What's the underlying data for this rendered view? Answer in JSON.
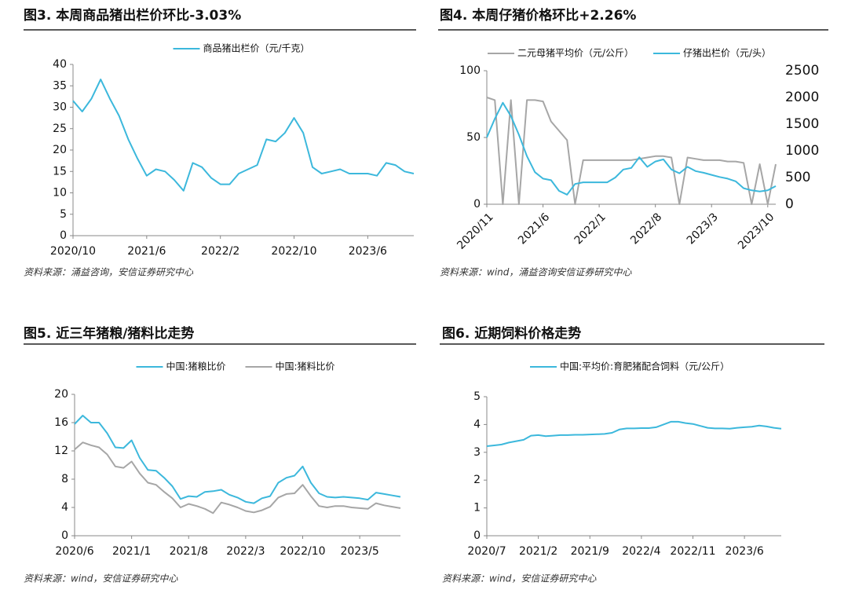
{
  "chart_data": [
    {
      "type": "line",
      "title": "图3. 本周商品猪出栏价环比-3.03%",
      "source": "资料来源：涌益咨询，安信证券研究中心",
      "categories": [
        "2020/10",
        null,
        null,
        null,
        null,
        null,
        null,
        null,
        "2021/6",
        null,
        null,
        null,
        null,
        null,
        null,
        null,
        "2022/2",
        null,
        null,
        null,
        null,
        null,
        null,
        null,
        "2022/10",
        null,
        null,
        null,
        null,
        null,
        null,
        null,
        "2023/6",
        null,
        null,
        null,
        null,
        null
      ],
      "series": [
        {
          "name": "商品猪出栏价（元/千克）",
          "color": "#3cb8dc",
          "values": [
            31.5,
            29,
            32,
            36.5,
            32,
            28,
            22.5,
            18,
            14,
            15.5,
            15,
            13,
            10.5,
            17,
            16,
            13.5,
            12,
            12,
            14.5,
            15.5,
            16.5,
            22.5,
            22,
            24,
            27.5,
            24,
            16,
            14.5,
            15,
            15.5,
            14.5,
            14.5,
            14.5,
            14,
            17,
            16.5,
            15,
            14.5
          ]
        }
      ],
      "ylim": [
        0,
        40
      ],
      "yticks": [
        0,
        5,
        10,
        15,
        20,
        25,
        30,
        35,
        40
      ]
    },
    {
      "type": "line",
      "title": "图4. 本周仔猪价格环比+2.26%",
      "source": "资料来源：wind，涌益咨询安信证券研究中心",
      "categories": [
        "2020/11",
        null,
        null,
        null,
        null,
        null,
        null,
        "2021/6",
        null,
        null,
        null,
        null,
        null,
        null,
        "2022/1",
        null,
        null,
        null,
        null,
        null,
        null,
        "2022/8",
        null,
        null,
        null,
        null,
        null,
        null,
        "2023/3",
        null,
        null,
        null,
        null,
        null,
        null,
        "2023/10",
        null
      ],
      "series": [
        {
          "name": "二元母猪平均价（元/公斤）",
          "color": "#a6a6a6",
          "values": [
            80,
            78,
            0,
            78,
            0,
            78,
            78,
            77,
            62,
            55,
            48,
            0,
            33,
            33,
            33,
            33,
            33,
            33,
            33,
            34,
            35,
            36,
            36,
            35,
            0,
            35,
            34,
            33,
            33,
            33,
            32,
            32,
            31,
            0,
            30,
            0,
            30
          ]
        },
        {
          "name": "仔猪出栏价（元/头）",
          "color": "#3cb8dc",
          "axis": "y2",
          "values": [
            1250,
            1600,
            1900,
            1650,
            1300,
            900,
            600,
            480,
            450,
            250,
            180,
            380,
            410,
            410,
            410,
            410,
            500,
            650,
            680,
            880,
            700,
            800,
            840,
            650,
            580,
            700,
            620,
            590,
            550,
            510,
            480,
            430,
            300,
            260,
            240,
            260,
            340
          ]
        }
      ],
      "ylim": [
        0,
        100
      ],
      "yticks": [
        0,
        50,
        100
      ],
      "y2lim": [
        0,
        2500
      ],
      "y2ticks": [
        0,
        500,
        1000,
        1500,
        2000,
        2500
      ]
    },
    {
      "type": "line",
      "title": "图5. 近三年猪粮/猪料比走势",
      "source": "资料来源：wind，安信证券研究中心",
      "categories": [
        "2020/6",
        null,
        null,
        null,
        null,
        null,
        null,
        "2021/1",
        null,
        null,
        null,
        null,
        null,
        null,
        "2021/8",
        null,
        null,
        null,
        null,
        null,
        null,
        "2022/3",
        null,
        null,
        null,
        null,
        null,
        null,
        "2022/10",
        null,
        null,
        null,
        null,
        null,
        null,
        "2023/5",
        null,
        null,
        null,
        null,
        null
      ],
      "series": [
        {
          "name": "中国:猪粮比价",
          "color": "#3cb8dc",
          "values": [
            15.8,
            17,
            16,
            16,
            14.5,
            12.5,
            12.4,
            13.5,
            11,
            9.3,
            9.2,
            8.2,
            7,
            5.2,
            5.6,
            5.5,
            6.2,
            6.3,
            6.5,
            5.8,
            5.4,
            4.8,
            4.6,
            5.3,
            5.6,
            7.5,
            8.2,
            8.5,
            9.8,
            7.5,
            6,
            5.5,
            5.4,
            5.5,
            5.4,
            5.3,
            5.1,
            6.1,
            5.9,
            5.7,
            5.5
          ]
        },
        {
          "name": "中国:猪料比价",
          "color": "#a6a6a6",
          "values": [
            12.2,
            13.2,
            12.8,
            12.5,
            11.5,
            9.8,
            9.6,
            10.5,
            8.8,
            7.5,
            7.2,
            6.2,
            5.3,
            4.0,
            4.5,
            4.2,
            3.8,
            3.2,
            4.7,
            4.4,
            4.0,
            3.5,
            3.3,
            3.6,
            4.1,
            5.4,
            5.9,
            6.0,
            7.2,
            5.6,
            4.2,
            4.0,
            4.2,
            4.2,
            4.0,
            3.9,
            3.8,
            4.6,
            4.3,
            4.1,
            3.9
          ]
        }
      ],
      "ylim": [
        0,
        20
      ],
      "yticks": [
        0,
        4,
        8,
        12,
        16,
        20
      ]
    },
    {
      "type": "line",
      "title": "图6. 近期饲料价格走势",
      "source": "资料来源：wind，安信证券研究中心",
      "categories": [
        "2020/7",
        null,
        null,
        null,
        null,
        null,
        null,
        "2021/2",
        null,
        null,
        null,
        null,
        null,
        null,
        "2021/9",
        null,
        null,
        null,
        null,
        null,
        null,
        "2022/4",
        null,
        null,
        null,
        null,
        null,
        null,
        "2022/11",
        null,
        null,
        null,
        null,
        null,
        null,
        "2023/6",
        null,
        null,
        null,
        null,
        null
      ],
      "series": [
        {
          "name": "中国:平均价:育肥猪配合饲料（元/公斤）",
          "color": "#3cb8dc",
          "values": [
            3.22,
            3.25,
            3.28,
            3.35,
            3.4,
            3.45,
            3.6,
            3.62,
            3.58,
            3.6,
            3.62,
            3.62,
            3.63,
            3.63,
            3.64,
            3.65,
            3.66,
            3.7,
            3.82,
            3.86,
            3.86,
            3.87,
            3.87,
            3.9,
            4.0,
            4.1,
            4.1,
            4.05,
            4.02,
            3.95,
            3.88,
            3.86,
            3.86,
            3.85,
            3.88,
            3.9,
            3.92,
            3.96,
            3.93,
            3.88,
            3.85
          ]
        }
      ],
      "ylim": [
        0,
        5
      ],
      "yticks": [
        0,
        1,
        2,
        3,
        4,
        5
      ]
    }
  ]
}
